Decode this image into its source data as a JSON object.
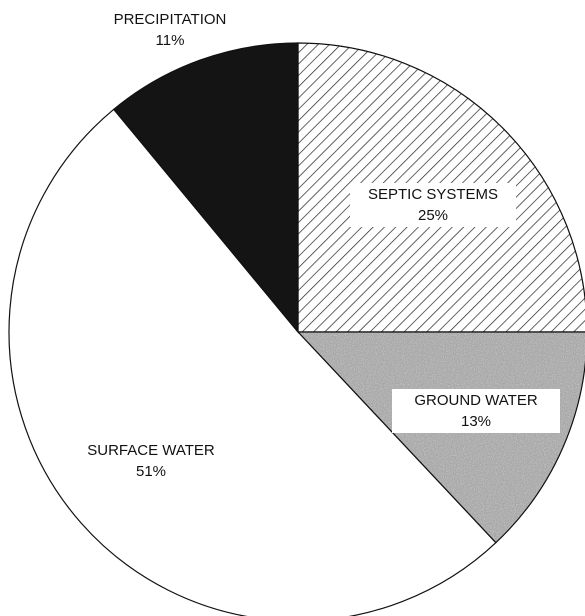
{
  "chart_data": {
    "type": "pie",
    "start_angle_deg": 0,
    "direction": "clockwise",
    "slices": [
      {
        "label": "SEPTIC SYSTEMS",
        "value": 25,
        "value_label": "25%",
        "pattern": "diagonal-hatch"
      },
      {
        "label": "GROUND WATER",
        "value": 13,
        "value_label": "13%",
        "pattern": "gray-speckle"
      },
      {
        "label": "SURFACE WATER",
        "value": 51,
        "value_label": "51%",
        "pattern": "white"
      },
      {
        "label": "PRECIPITATION",
        "value": 11,
        "value_label": "11%",
        "pattern": "solid-black"
      }
    ]
  }
}
